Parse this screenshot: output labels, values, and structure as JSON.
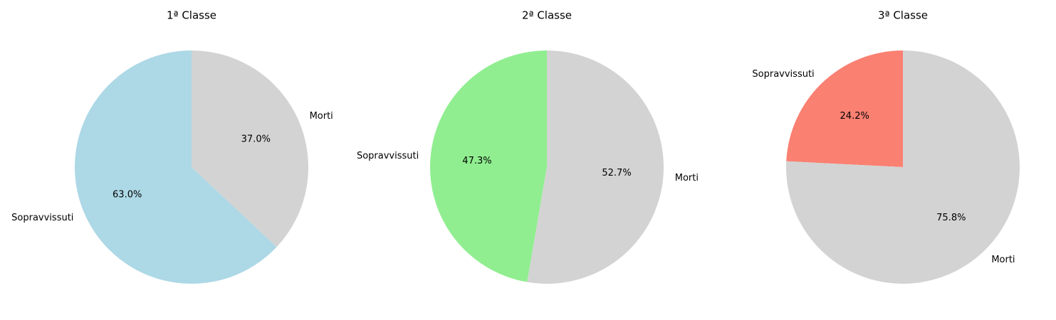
{
  "chart_data": [
    {
      "type": "pie",
      "title": "1ª Classe",
      "slices": [
        {
          "label": "Sopravvissuti",
          "value": 63.0,
          "pct_label": "63.0%",
          "color": "#add8e6"
        },
        {
          "label": "Morti",
          "value": 37.0,
          "pct_label": "37.0%",
          "color": "#d3d3d3"
        }
      ]
    },
    {
      "type": "pie",
      "title": "2ª Classe",
      "slices": [
        {
          "label": "Sopravvissuti",
          "value": 47.3,
          "pct_label": "47.3%",
          "color": "#90ee90"
        },
        {
          "label": "Morti",
          "value": 52.7,
          "pct_label": "52.7%",
          "color": "#d3d3d3"
        }
      ]
    },
    {
      "type": "pie",
      "title": "3ª Classe",
      "slices": [
        {
          "label": "Sopravvissuti",
          "value": 24.2,
          "pct_label": "24.2%",
          "color": "#fa8072"
        },
        {
          "label": "Morti",
          "value": 75.8,
          "pct_label": "75.8%",
          "color": "#d3d3d3"
        }
      ]
    }
  ]
}
